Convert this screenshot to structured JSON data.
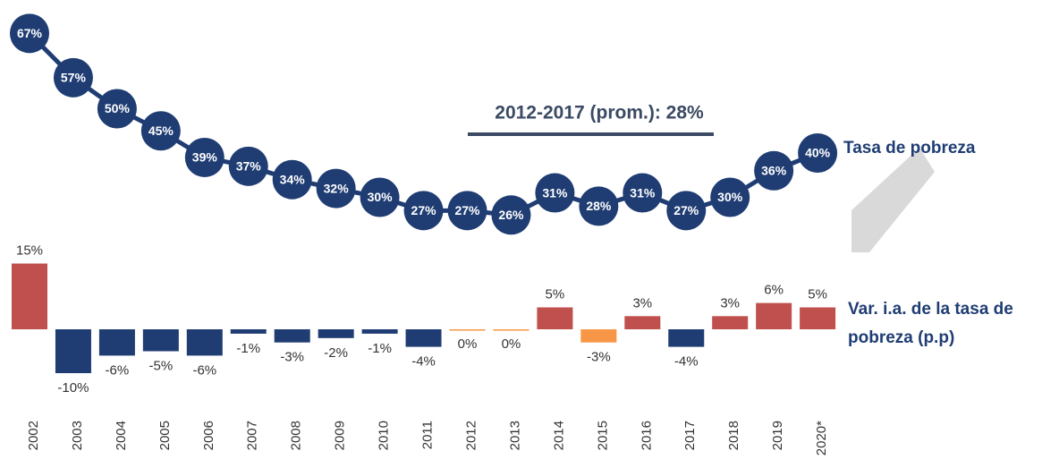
{
  "chart_data": [
    {
      "type": "line",
      "series": [
        {
          "name": "Tasa de pobreza",
          "color": "#1f3d73",
          "values": [
            67,
            57,
            50,
            45,
            39,
            37,
            34,
            32,
            30,
            27,
            27,
            26,
            31,
            28,
            31,
            27,
            30,
            36,
            40
          ],
          "value_labels": [
            "67%",
            "57%",
            "50%",
            "45%",
            "39%",
            "37%",
            "34%",
            "32%",
            "30%",
            "27%",
            "27%",
            "26%",
            "31%",
            "28%",
            "31%",
            "27%",
            "30%",
            "36%",
            "40%"
          ]
        }
      ],
      "annotations": [
        {
          "text": "2012-2017 (prom.): 28%"
        }
      ]
    },
    {
      "type": "bar",
      "categories": [
        "2002",
        "2003",
        "2004",
        "2005",
        "2006",
        "2007",
        "2008",
        "2009",
        "2010",
        "2011",
        "2012",
        "2013",
        "2014",
        "2015",
        "2016",
        "2017",
        "2018",
        "2019",
        "2020*"
      ],
      "series": [
        {
          "name": "Var. i.a. de la tasa de pobreza (p.p)",
          "colors": [
            "#c0504d",
            "#1f3d73",
            "#1f3d73",
            "#1f3d73",
            "#1f3d73",
            "#1f3d73",
            "#1f3d73",
            "#1f3d73",
            "#1f3d73",
            "#1f3d73",
            "#f79646",
            "#f79646",
            "#c0504d",
            "#f79646",
            "#c0504d",
            "#1f3d73",
            "#c0504d",
            "#c0504d",
            "#c0504d"
          ],
          "values": [
            15,
            -10,
            -6,
            -5,
            -6,
            -1,
            -3,
            -2,
            -1,
            -4,
            0,
            0,
            5,
            -3,
            3,
            -4,
            3,
            6,
            5
          ],
          "value_labels": [
            "15%",
            "-10%",
            "-6%",
            "-5%",
            "-6%",
            "-1%",
            "-3%",
            "-2%",
            "-1%",
            "-4%",
            "0%",
            "0%",
            "5%",
            "-3%",
            "3%",
            "-4%",
            "3%",
            "6%",
            "5%"
          ]
        }
      ]
    }
  ]
}
